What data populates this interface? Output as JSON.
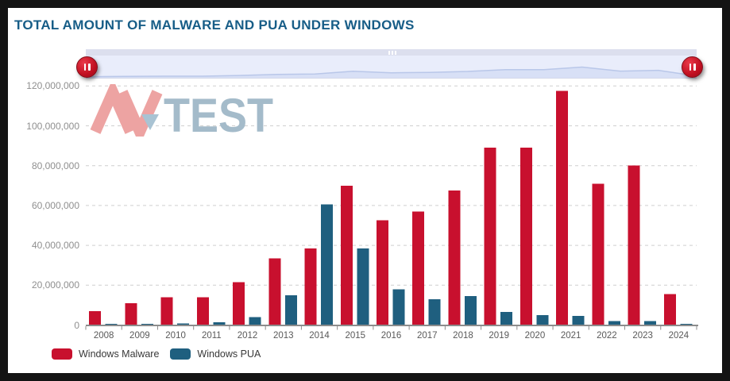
{
  "header": {
    "title": "TOTAL AMOUNT OF MALWARE AND PUA UNDER WINDOWS",
    "title_color": "#175d87"
  },
  "navigator": {
    "left_handle_icon": "pause-icon",
    "right_handle_icon": "pause-icon",
    "grip_icon": "grip-bars-icon",
    "handle_color": "#c00f20",
    "track_color": "#dcdfee",
    "band_color": "#e9edfb",
    "area_fill": "#d8e0f6",
    "area_line": "#b9c7e9"
  },
  "watermark": {
    "av_label": "AV",
    "test_label": "TEST",
    "av_color": "#eda3a2",
    "test_color": "#a4bbca",
    "triangle_color": "#a9c3d3"
  },
  "chart_data": {
    "type": "bar",
    "title": "TOTAL AMOUNT OF MALWARE AND PUA UNDER WINDOWS",
    "categories": [
      "2008",
      "2009",
      "2010",
      "2011",
      "2012",
      "2013",
      "2014",
      "2015",
      "2016",
      "2017",
      "2018",
      "2019",
      "2020",
      "2021",
      "2022",
      "2023",
      "2024"
    ],
    "series": [
      {
        "name": "Windows Malware",
        "color": "#c8102e",
        "values": [
          7000000,
          11000000,
          14000000,
          14000000,
          21500000,
          33500000,
          38500000,
          70000000,
          52500000,
          57000000,
          67500000,
          89000000,
          89000000,
          117500000,
          71000000,
          80000000,
          15500000
        ]
      },
      {
        "name": "Windows PUA",
        "color": "#1f5f7f",
        "values": [
          500000,
          600000,
          700000,
          1300000,
          4000000,
          15000000,
          60500000,
          38500000,
          18000000,
          13000000,
          14500000,
          6500000,
          5000000,
          4500000,
          2000000,
          2000000,
          500000
        ]
      }
    ],
    "ylim": [
      0,
      120000000
    ],
    "ytick_step": 20000000,
    "ytick_labels": [
      "0",
      "20,000,000",
      "40,000,000",
      "60,000,000",
      "80,000,000",
      "100,000,000",
      "120,000,000"
    ],
    "grid": "horizontal-dashed",
    "gridline_color": "#cfcfcf",
    "axis_color": "#8c8c8c",
    "legend_position": "bottom-left"
  }
}
